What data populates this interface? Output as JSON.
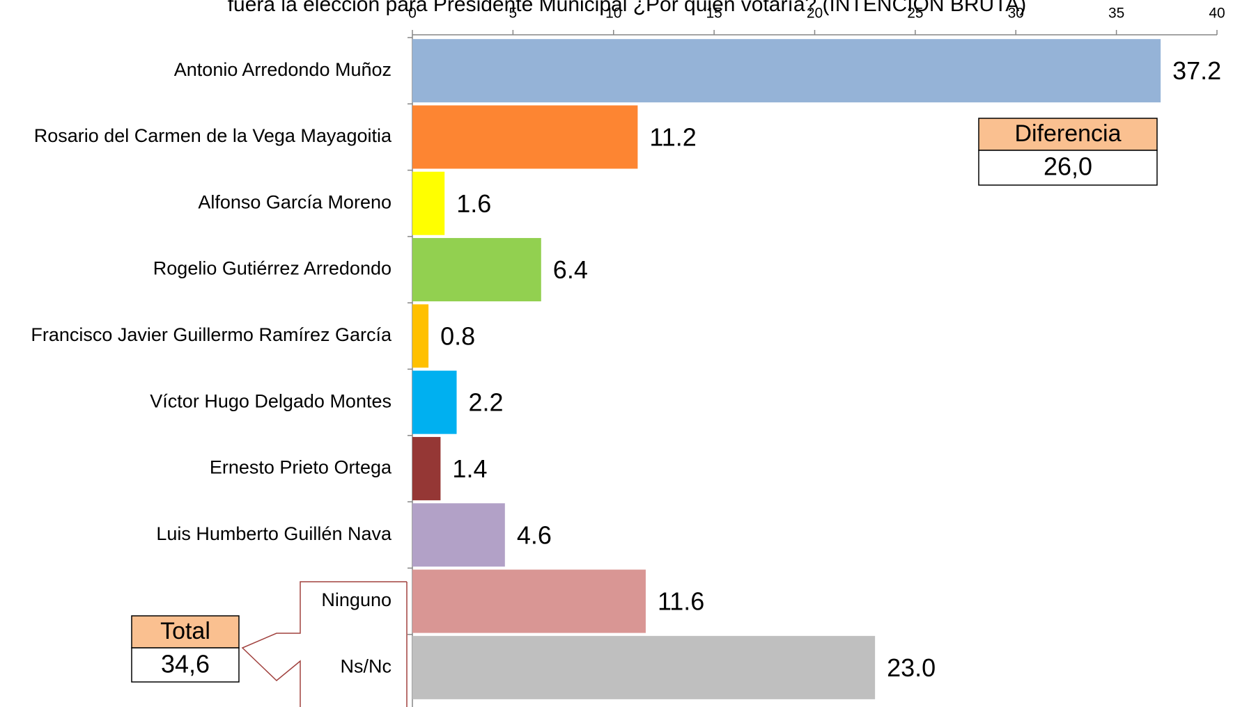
{
  "chart_data": {
    "type": "hbar",
    "title": "fuera la elección para Presidente Municipal ¿Por quién votaría? (INTENCIÓN BRUTA)",
    "categories": [
      "Antonio Arredondo Muñoz",
      "Rosario del Carmen de la Vega Mayagoitia",
      "Alfonso García Moreno",
      "Rogelio Gutiérrez Arredondo",
      "Francisco Javier Guillermo Ramírez García",
      "Víctor Hugo Delgado Montes",
      "Ernesto Prieto Ortega",
      "Luis Humberto Guillén Nava",
      "Ninguno",
      "Ns/Nc"
    ],
    "values": [
      37.2,
      11.2,
      1.6,
      6.4,
      0.8,
      2.2,
      1.4,
      4.6,
      11.6,
      23.0
    ],
    "value_labels": [
      "37.2",
      "11.2",
      "1.6",
      "6.4",
      "0.8",
      "2.2",
      "1.4",
      "4.6",
      "11.6",
      "23.0"
    ],
    "colors": [
      "#95b3d7",
      "#fd8532",
      "#ffff00",
      "#92d050",
      "#ffc000",
      "#00b0f0",
      "#953735",
      "#b2a1c7",
      "#d99694",
      "#bfbfbf"
    ],
    "xlim": [
      0,
      40
    ],
    "xticks": [
      0,
      5,
      10,
      15,
      20,
      25,
      30,
      35,
      40
    ],
    "annotations": [
      {
        "title": "Diferencia",
        "text": "26,0"
      },
      {
        "title": "Total",
        "text": "34,6"
      }
    ]
  }
}
